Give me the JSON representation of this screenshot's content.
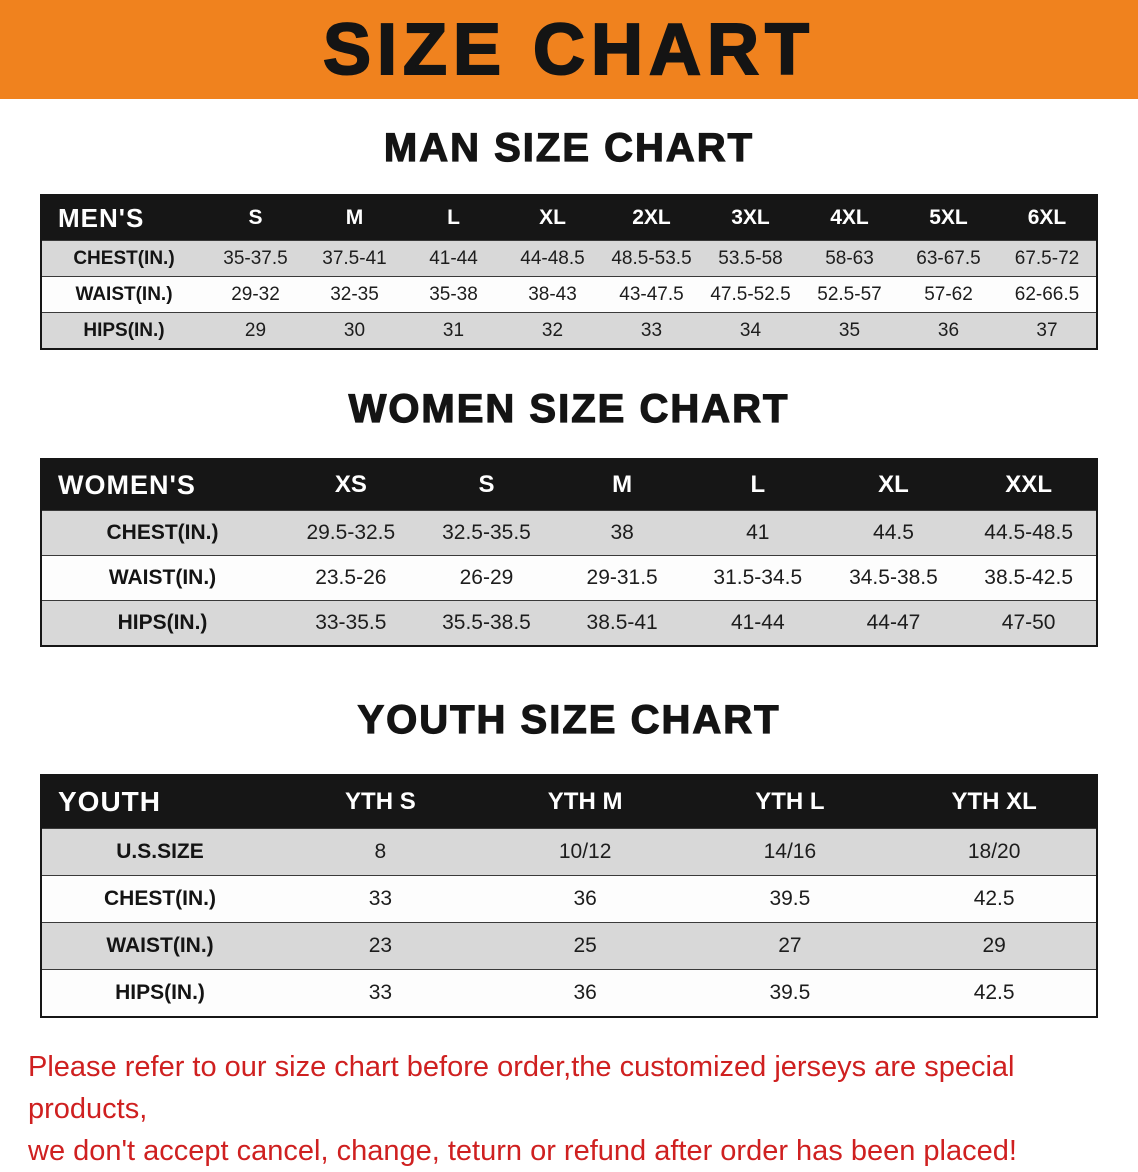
{
  "banner": {
    "title": "SIZE CHART",
    "color": "#f0821e"
  },
  "sections": [
    {
      "key": "men",
      "heading": "MAN SIZE CHART",
      "table": {
        "header": [
          "MEN'S",
          "S",
          "M",
          "L",
          "XL",
          "2XL",
          "3XL",
          "4XL",
          "5XL",
          "6XL"
        ],
        "rows": [
          [
            "CHEST(IN.)",
            "35-37.5",
            "37.5-41",
            "41-44",
            "44-48.5",
            "48.5-53.5",
            "53.5-58",
            "58-63",
            "63-67.5",
            "67.5-72"
          ],
          [
            "WAIST(IN.)",
            "29-32",
            "32-35",
            "35-38",
            "38-43",
            "43-47.5",
            "47.5-52.5",
            "52.5-57",
            "57-62",
            "62-66.5"
          ],
          [
            "HIPS(IN.)",
            "29",
            "30",
            "31",
            "32",
            "33",
            "34",
            "35",
            "36",
            "37"
          ]
        ]
      }
    },
    {
      "key": "women",
      "heading": "WOMEN SIZE CHART",
      "table": {
        "header": [
          "WOMEN'S",
          "XS",
          "S",
          "M",
          "L",
          "XL",
          "XXL"
        ],
        "rows": [
          [
            "CHEST(IN.)",
            "29.5-32.5",
            "32.5-35.5",
            "38",
            "41",
            "44.5",
            "44.5-48.5"
          ],
          [
            "WAIST(IN.)",
            "23.5-26",
            "26-29",
            "29-31.5",
            "31.5-34.5",
            "34.5-38.5",
            "38.5-42.5"
          ],
          [
            "HIPS(IN.)",
            "33-35.5",
            "35.5-38.5",
            "38.5-41",
            "41-44",
            "44-47",
            "47-50"
          ]
        ]
      }
    },
    {
      "key": "youth",
      "heading": "YOUTH SIZE CHART",
      "table": {
        "header": [
          "YOUTH",
          "YTH S",
          "YTH M",
          "YTH L",
          "YTH XL"
        ],
        "rows": [
          [
            "U.S.SIZE",
            "8",
            "10/12",
            "14/16",
            "18/20"
          ],
          [
            "CHEST(IN.)",
            "33",
            "36",
            "39.5",
            "42.5"
          ],
          [
            "WAIST(IN.)",
            "23",
            "25",
            "27",
            "29"
          ],
          [
            "HIPS(IN.)",
            "33",
            "36",
            "39.5",
            "42.5"
          ]
        ]
      }
    }
  ],
  "disclaimer": {
    "color": "#cf2020",
    "lines": [
      "Please refer to our size chart before order,the customized jerseys are special products,",
      "we don't accept cancel, change, teturn or refund after order has been placed!"
    ]
  },
  "colors": {
    "banner_orange": "#f0821e",
    "table_header_black": "#161616",
    "row_stripe_gray": "#d8d8d8",
    "disclaimer_red": "#cf2020"
  }
}
